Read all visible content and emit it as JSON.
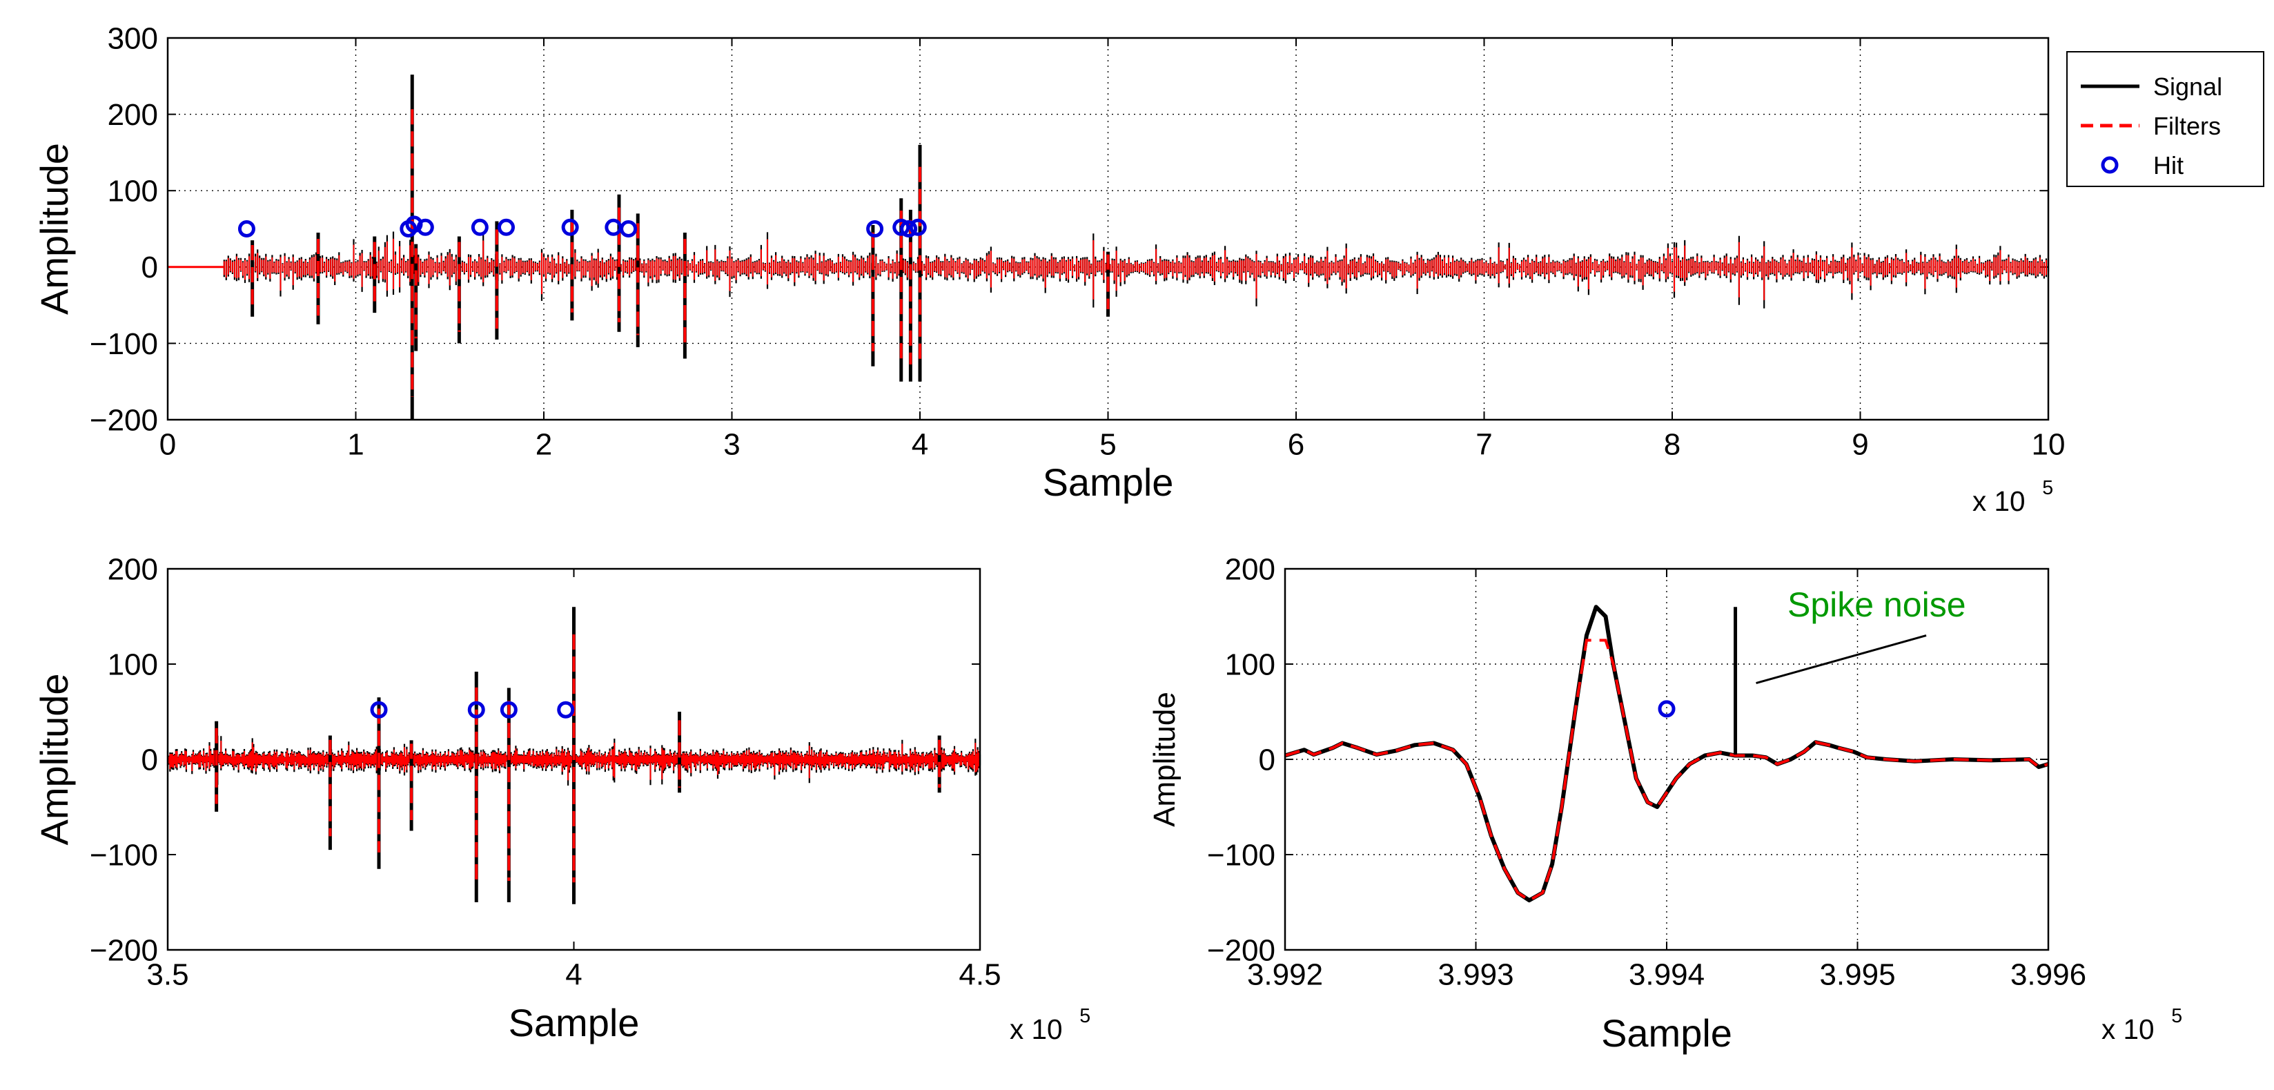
{
  "chart_data": [
    {
      "id": "top",
      "type": "line",
      "xlabel": "Sample",
      "ylabel": "Amplitude",
      "xlim": [
        0,
        10
      ],
      "ylim": [
        -200,
        300
      ],
      "x_multiplier": "x 10",
      "x_multiplier_exp": "5",
      "xticks": [
        "0",
        "1",
        "2",
        "3",
        "4",
        "5",
        "6",
        "7",
        "8",
        "9",
        "10"
      ],
      "yticks": [
        "-200",
        "-100",
        "0",
        "100",
        "200",
        "300"
      ],
      "grid": true,
      "legend": {
        "position": "outside-right",
        "entries": [
          {
            "label": "Signal",
            "color": "#000000",
            "style": "solid"
          },
          {
            "label": "Filters",
            "color": "#ff0000",
            "style": "dashed"
          },
          {
            "label": "Hit",
            "color": "#0000dd",
            "style": "circle"
          }
        ]
      },
      "series": [
        {
          "name": "Signal",
          "color": "#000000",
          "segments_quiet": [
            [
              0,
              0.3
            ]
          ],
          "spikes": [
            [
              0.45,
              35,
              -65
            ],
            [
              0.8,
              45,
              -75
            ],
            [
              1.1,
              40,
              -60
            ],
            [
              1.3,
              252,
              -200
            ],
            [
              1.32,
              30,
              -110
            ],
            [
              1.55,
              40,
              -100
            ],
            [
              1.75,
              60,
              -95
            ],
            [
              2.15,
              75,
              -70
            ],
            [
              2.4,
              95,
              -85
            ],
            [
              2.5,
              70,
              -105
            ],
            [
              2.75,
              45,
              -120
            ],
            [
              3.75,
              55,
              -130
            ],
            [
              3.9,
              90,
              -150
            ],
            [
              3.95,
              75,
              -150
            ],
            [
              4.0,
              160,
              -150
            ],
            [
              5.0,
              20,
              -65
            ]
          ]
        },
        {
          "name": "Filters",
          "color": "#ff0000"
        },
        {
          "name": "Hit",
          "color": "#0000dd",
          "points": [
            [
              0.42,
              50
            ],
            [
              1.28,
              50
            ],
            [
              1.31,
              56
            ],
            [
              1.37,
              52
            ],
            [
              1.66,
              52
            ],
            [
              1.8,
              52
            ],
            [
              2.14,
              52
            ],
            [
              2.37,
              52
            ],
            [
              2.45,
              50
            ],
            [
              3.76,
              50
            ],
            [
              3.9,
              52
            ],
            [
              3.94,
              50
            ],
            [
              3.99,
              52
            ]
          ]
        }
      ]
    },
    {
      "id": "bottom-left",
      "type": "line",
      "xlabel": "Sample",
      "ylabel": "Amplitude",
      "xlim": [
        3.5,
        4.5
      ],
      "ylim": [
        -200,
        200
      ],
      "x_multiplier": "x 10",
      "x_multiplier_exp": "5",
      "xticks": [
        "3.5",
        "4",
        "4.5"
      ],
      "yticks": [
        "-200",
        "-100",
        "0",
        "100",
        "200"
      ],
      "grid": false,
      "series": [
        {
          "name": "Signal",
          "color": "#000000",
          "spikes": [
            [
              3.56,
              40,
              -55
            ],
            [
              3.7,
              25,
              -95
            ],
            [
              3.76,
              65,
              -115
            ],
            [
              3.8,
              20,
              -75
            ],
            [
              3.88,
              92,
              -150
            ],
            [
              3.92,
              75,
              -150
            ],
            [
              4.0,
              160,
              -152
            ],
            [
              4.13,
              50,
              -35
            ],
            [
              4.45,
              25,
              -35
            ]
          ]
        },
        {
          "name": "Filters",
          "color": "#ff0000"
        },
        {
          "name": "Hit",
          "color": "#0000dd",
          "points": [
            [
              3.76,
              52
            ],
            [
              3.88,
              52
            ],
            [
              3.92,
              52
            ],
            [
              3.99,
              52
            ]
          ]
        }
      ]
    },
    {
      "id": "bottom-right",
      "type": "line",
      "xlabel": "Sample",
      "ylabel": "Amplitude",
      "xlim": [
        3.992,
        3.996
      ],
      "ylim": [
        -200,
        200
      ],
      "x_multiplier": "x 10",
      "x_multiplier_exp": "5",
      "xticks": [
        "3.992",
        "3.993",
        "3.994",
        "3.995",
        "3.996"
      ],
      "yticks": [
        "-200",
        "-100",
        "0",
        "100",
        "200"
      ],
      "grid": true,
      "annotation": {
        "text": "Spike noise",
        "color": "#009900",
        "points_to": [
          3.99436,
          80
        ]
      },
      "series": [
        {
          "name": "Signal",
          "color": "#000000",
          "points": [
            [
              3.992,
              4
            ],
            [
              3.9921,
              10
            ],
            [
              3.99215,
              5
            ],
            [
              3.99225,
              12
            ],
            [
              3.9923,
              17
            ],
            [
              3.99238,
              12
            ],
            [
              3.99248,
              5
            ],
            [
              3.99258,
              9
            ],
            [
              3.99268,
              15
            ],
            [
              3.99278,
              17
            ],
            [
              3.99288,
              10
            ],
            [
              3.99295,
              -5
            ],
            [
              3.99302,
              -40
            ],
            [
              3.99308,
              -80
            ],
            [
              3.99315,
              -115
            ],
            [
              3.99322,
              -140
            ],
            [
              3.99328,
              -148
            ],
            [
              3.99335,
              -140
            ],
            [
              3.9934,
              -110
            ],
            [
              3.99345,
              -50
            ],
            [
              3.99352,
              50
            ],
            [
              3.99358,
              130
            ],
            [
              3.99363,
              160
            ],
            [
              3.99368,
              150
            ],
            [
              3.99372,
              100
            ],
            [
              3.99378,
              40
            ],
            [
              3.99384,
              -20
            ],
            [
              3.9939,
              -45
            ],
            [
              3.99395,
              -50
            ],
            [
              3.994,
              -35
            ],
            [
              3.99405,
              -20
            ],
            [
              3.99412,
              -5
            ],
            [
              3.9942,
              4
            ],
            [
              3.99428,
              7
            ],
            [
              3.99436,
              4
            ],
            [
              3.99445,
              4
            ],
            [
              3.99452,
              2
            ],
            [
              3.99458,
              -5
            ],
            [
              3.99465,
              0
            ],
            [
              3.99472,
              8
            ],
            [
              3.99478,
              18
            ],
            [
              3.99485,
              15
            ],
            [
              3.9949,
              12
            ],
            [
              3.99498,
              8
            ],
            [
              3.99505,
              2
            ],
            [
              3.99515,
              0
            ],
            [
              3.9953,
              -2
            ],
            [
              3.9955,
              0
            ],
            [
              3.9957,
              -1
            ],
            [
              3.9959,
              0
            ],
            [
              3.99595,
              -8
            ],
            [
              3.996,
              -5
            ]
          ],
          "spike": [
            3.99436,
            160
          ]
        },
        {
          "name": "Filters",
          "color": "#ff0000"
        },
        {
          "name": "Hit",
          "color": "#0000dd",
          "points": [
            [
              3.994,
              53
            ]
          ]
        }
      ]
    }
  ]
}
